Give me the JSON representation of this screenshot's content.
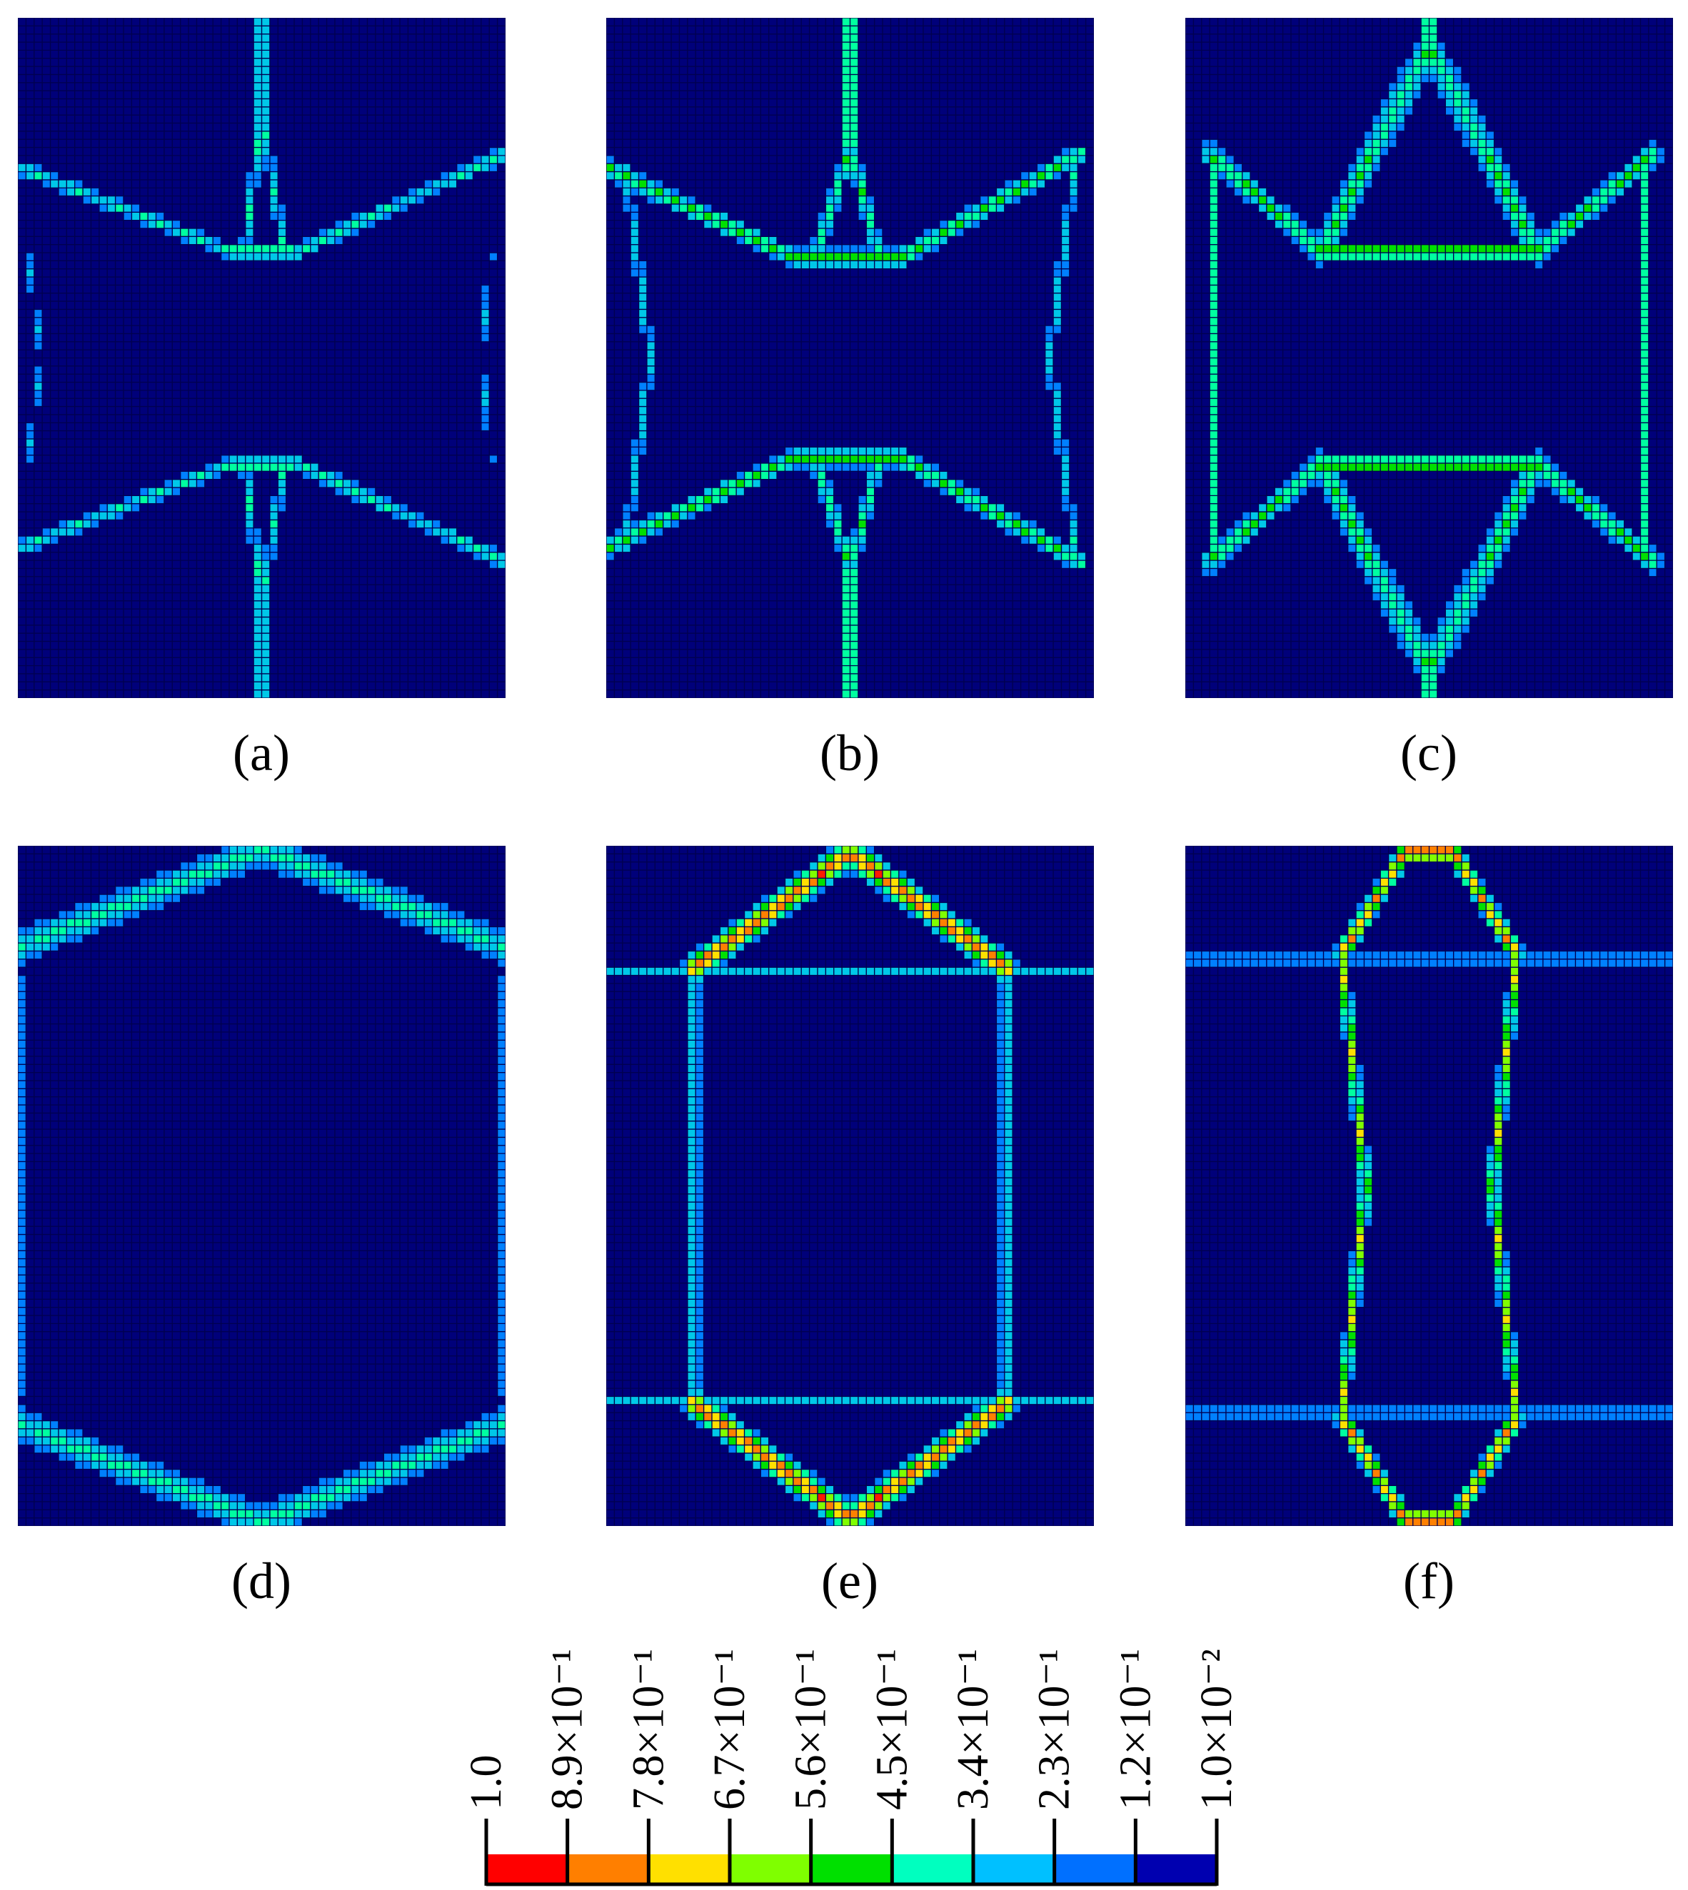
{
  "panels": [
    {
      "id": "a",
      "label": "(a)"
    },
    {
      "id": "b",
      "label": "(b)"
    },
    {
      "id": "c",
      "label": "(c)"
    },
    {
      "id": "d",
      "label": "(d)"
    },
    {
      "id": "e",
      "label": "(e)"
    },
    {
      "id": "f",
      "label": "(f)"
    }
  ],
  "colorbar": {
    "colors": [
      "#ff0000",
      "#ff7f00",
      "#ffe000",
      "#7fff00",
      "#00e000",
      "#00ffbf",
      "#00c0ff",
      "#0070ff",
      "#0000b0"
    ],
    "labels": [
      "1.0",
      "8.9×10⁻¹",
      "7.8×10⁻¹",
      "6.7×10⁻¹",
      "5.6×10⁻¹",
      "4.5×10⁻¹",
      "3.4×10⁻¹",
      "2.3×10⁻¹",
      "1.2×10⁻¹",
      "1.0×10⁻²"
    ]
  },
  "colors": {
    "background": "#00007a",
    "grid": "#000050",
    "low": "#00c0ff",
    "mid": "#00e070",
    "high": "#ffe000",
    "peak": "#ff2000"
  }
}
